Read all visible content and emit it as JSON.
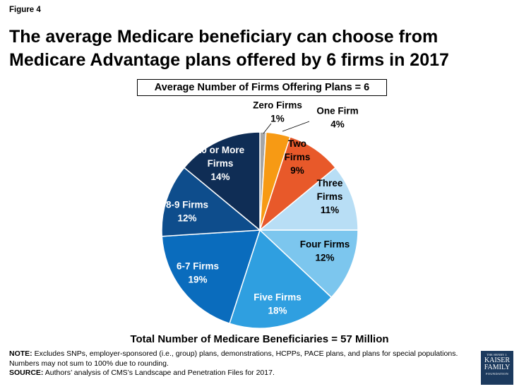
{
  "figure_label": "Figure 4",
  "title_line1": "The average Medicare beneficiary can choose from",
  "title_line2": "Medicare Advantage plans offered by 6 firms in 2017",
  "chart_data": {
    "type": "pie",
    "title": "Average Number of Firms Offering Plans = 6",
    "total_label": "Total Number of Medicare Beneficiaries = 57 Million",
    "slices": [
      {
        "name": "Zero Firms",
        "label_lines": [
          "Zero Firms"
        ],
        "value": 1,
        "color": "#a6a6a6"
      },
      {
        "name": "One Firm",
        "label_lines": [
          "One Firm"
        ],
        "value": 4,
        "color": "#f79a14"
      },
      {
        "name": "Two Firms",
        "label_lines": [
          "Two",
          "Firms"
        ],
        "value": 9,
        "color": "#e8592a"
      },
      {
        "name": "Three Firms",
        "label_lines": [
          "Three",
          "Firms"
        ],
        "value": 11,
        "color": "#b8def5"
      },
      {
        "name": "Four Firms",
        "label_lines": [
          "Four Firms"
        ],
        "value": 12,
        "color": "#7cc6ee"
      },
      {
        "name": "Five Firms",
        "label_lines": [
          "Five Firms"
        ],
        "value": 18,
        "color": "#2f9fe0"
      },
      {
        "name": "6-7 Firms",
        "label_lines": [
          "6-7 Firms"
        ],
        "value": 19,
        "color": "#0a6cbd"
      },
      {
        "name": "8-9 Firms",
        "label_lines": [
          "8-9 Firms"
        ],
        "value": 12,
        "color": "#0e4d8c"
      },
      {
        "name": "10 or More Firms",
        "label_lines": [
          "10 or More",
          "Firms"
        ],
        "value": 14,
        "color": "#0f2d55"
      }
    ]
  },
  "note_label": "NOTE:",
  "note_text": " Excludes SNPs, employer-sponsored (i.e., group) plans, demonstrations, HCPPs, PACE plans, and plans for special populations. Numbers may not sum to 100% due to rounding.",
  "source_label": "SOURCE:",
  "source_text": " Authors’ analysis of CMS’s Landscape and Penetration Files for 2017.",
  "logo": {
    "line1": "THE HENRY J.",
    "line2": "KAISER",
    "line3": "FAMILY",
    "line4": "FOUNDATION"
  }
}
